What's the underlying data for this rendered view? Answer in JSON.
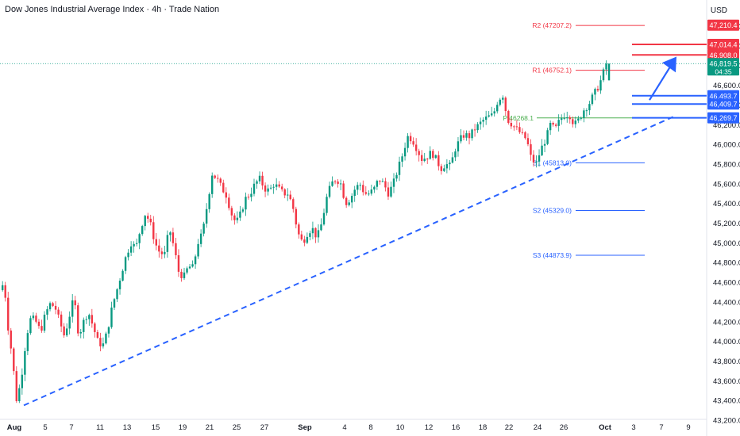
{
  "title": "Dow Jones Industrial Average Index · 4h · Trade Nation",
  "currency": "USD",
  "chart_data": {
    "type": "candlestick",
    "y_range": [
      43200,
      47400
    ],
    "y_ticks": [
      "47,200.0",
      "47,000.0",
      "46,800.0",
      "46,600.0",
      "46,400.0",
      "46,200.0",
      "46,000.0",
      "45,800.0",
      "45,600.0",
      "45,400.0",
      "45,200.0",
      "45,000.0",
      "44,800.0",
      "44,600.0",
      "44,400.0",
      "44,200.0",
      "44,000.0",
      "43,800.0",
      "43,600.0",
      "43,400.0",
      "43,200.0"
    ],
    "x_labels": [
      "Aug",
      "5",
      "7",
      "11",
      "13",
      "15",
      "19",
      "21",
      "25",
      "27",
      "Sep",
      "4",
      "8",
      "10",
      "12",
      "16",
      "18",
      "22",
      "24",
      "26",
      "Oct",
      "3",
      "7",
      "9"
    ],
    "pivots": [
      {
        "label": "R2 (47207.2)",
        "value": 47207.2,
        "color": "#f23645"
      },
      {
        "label": "R1 (46752.1)",
        "value": 46752.1,
        "color": "#f23645"
      },
      {
        "label": "P 46268.1",
        "value": 46268.1,
        "color": "#4caf50"
      },
      {
        "label": "S1 (45813.0)",
        "value": 45813.0,
        "color": "#2962ff"
      },
      {
        "label": "S2 (45329.0)",
        "value": 45329.0,
        "color": "#2962ff"
      },
      {
        "label": "S3 (44873.9)",
        "value": 44873.9,
        "color": "#2962ff"
      }
    ],
    "price_badges": [
      {
        "text": "47,210.4",
        "value": 47210.4,
        "color": "#f23645",
        "line": false
      },
      {
        "text": "47,014.4",
        "value": 47014.4,
        "color": "#f23645",
        "line": true
      },
      {
        "text": "46,908.0",
        "value": 46908.0,
        "color": "#f23645",
        "line": true
      },
      {
        "text": "46,493.7",
        "value": 46493.7,
        "color": "#2962ff",
        "line": true
      },
      {
        "text": "46,409.7",
        "value": 46409.7,
        "color": "#2962ff",
        "line": true
      },
      {
        "text": "46,269.7",
        "value": 46269.7,
        "color": "#2962ff",
        "line": true
      }
    ],
    "current_price": {
      "text": "46,819.5",
      "countdown": "04:35",
      "value": 46819.5,
      "color": "#089981"
    },
    "trendline": {
      "from": [
        0,
        43350
      ],
      "to": [
        1.0,
        46280
      ],
      "color": "#2962ff"
    },
    "projection_arrow": {
      "color": "#2962ff"
    },
    "anchors": [
      [
        0,
        44520
      ],
      [
        4,
        44620
      ],
      [
        8,
        44200
      ],
      [
        14,
        43850
      ],
      [
        20,
        43380
      ],
      [
        26,
        43650
      ],
      [
        32,
        44050
      ],
      [
        38,
        44250
      ],
      [
        44,
        44200
      ],
      [
        50,
        44100
      ],
      [
        56,
        44280
      ],
      [
        62,
        44380
      ],
      [
        68,
        44350
      ],
      [
        74,
        44200
      ],
      [
        80,
        44050
      ],
      [
        86,
        44250
      ],
      [
        92,
        44450
      ],
      [
        98,
        44050
      ],
      [
        104,
        44200
      ],
      [
        110,
        44300
      ],
      [
        116,
        44150
      ],
      [
        122,
        44000
      ],
      [
        128,
        43950
      ],
      [
        134,
        44100
      ],
      [
        140,
        44350
      ],
      [
        146,
        44520
      ],
      [
        152,
        44700
      ],
      [
        158,
        44880
      ],
      [
        164,
        45000
      ],
      [
        170,
        44950
      ],
      [
        176,
        45150
      ],
      [
        182,
        45300
      ],
      [
        188,
        45200
      ],
      [
        194,
        45000
      ],
      [
        200,
        44900
      ],
      [
        206,
        44880
      ],
      [
        212,
        45150
      ],
      [
        218,
        44950
      ],
      [
        224,
        44700
      ],
      [
        230,
        44650
      ],
      [
        236,
        44760
      ],
      [
        242,
        44750
      ],
      [
        248,
        45000
      ],
      [
        254,
        45100
      ],
      [
        260,
        45400
      ],
      [
        266,
        45700
      ],
      [
        272,
        45650
      ],
      [
        278,
        45560
      ],
      [
        284,
        45480
      ],
      [
        290,
        45300
      ],
      [
        296,
        45200
      ],
      [
        302,
        45300
      ],
      [
        308,
        45450
      ],
      [
        314,
        45500
      ],
      [
        320,
        45600
      ],
      [
        326,
        45650
      ],
      [
        332,
        45550
      ],
      [
        338,
        45530
      ],
      [
        344,
        45600
      ],
      [
        350,
        45550
      ],
      [
        356,
        45500
      ],
      [
        362,
        45500
      ],
      [
        368,
        45350
      ],
      [
        374,
        45100
      ],
      [
        380,
        45000
      ],
      [
        386,
        45100
      ],
      [
        392,
        45150
      ],
      [
        398,
        45050
      ],
      [
        404,
        45200
      ],
      [
        410,
        45450
      ],
      [
        416,
        45600
      ],
      [
        422,
        45650
      ],
      [
        428,
        45600
      ],
      [
        434,
        45400
      ],
      [
        440,
        45450
      ],
      [
        446,
        45550
      ],
      [
        452,
        45600
      ],
      [
        458,
        45500
      ],
      [
        464,
        45500
      ],
      [
        470,
        45550
      ],
      [
        476,
        45650
      ],
      [
        482,
        45600
      ],
      [
        488,
        45500
      ],
      [
        494,
        45600
      ],
      [
        500,
        45750
      ],
      [
        506,
        45900
      ],
      [
        512,
        46080
      ],
      [
        518,
        46050
      ],
      [
        524,
        45950
      ],
      [
        530,
        45850
      ],
      [
        536,
        45870
      ],
      [
        542,
        45920
      ],
      [
        548,
        45850
      ],
      [
        554,
        45750
      ],
      [
        560,
        45800
      ],
      [
        566,
        45780
      ],
      [
        572,
        45950
      ],
      [
        578,
        46050
      ],
      [
        584,
        46100
      ],
      [
        590,
        46080
      ],
      [
        596,
        46150
      ],
      [
        602,
        46200
      ],
      [
        608,
        46250
      ],
      [
        614,
        46280
      ],
      [
        620,
        46300
      ],
      [
        626,
        46450
      ],
      [
        632,
        46500
      ],
      [
        638,
        46250
      ],
      [
        644,
        46200
      ],
      [
        650,
        46150
      ],
      [
        656,
        46100
      ],
      [
        662,
        46050
      ],
      [
        668,
        45850
      ],
      [
        674,
        45800
      ],
      [
        680,
        45950
      ],
      [
        686,
        46050
      ],
      [
        692,
        46200
      ],
      [
        698,
        46150
      ],
      [
        704,
        46250
      ],
      [
        710,
        46300
      ],
      [
        716,
        46300
      ],
      [
        722,
        46200
      ],
      [
        728,
        46250
      ],
      [
        734,
        46350
      ],
      [
        740,
        46400
      ],
      [
        746,
        46500
      ],
      [
        752,
        46580
      ],
      [
        758,
        46700
      ],
      [
        761,
        46819
      ]
    ]
  }
}
